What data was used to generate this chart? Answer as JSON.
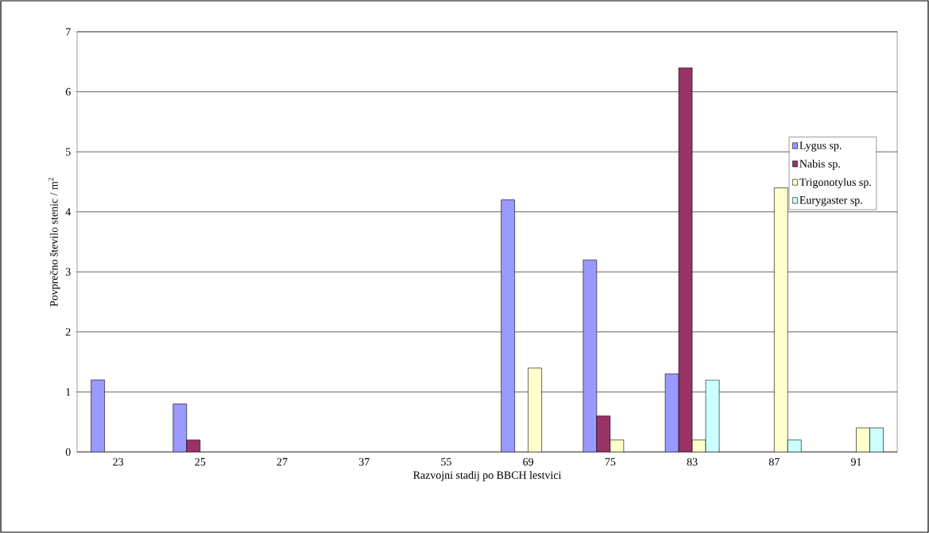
{
  "chart_data": {
    "type": "bar",
    "xlabel": "Razvojni stadij po BBCH lestvici",
    "ylabel": "Povprečno število stenic / m$^{2}$",
    "categories": [
      "23",
      "25",
      "27",
      "37",
      "55",
      "69",
      "75",
      "83",
      "87",
      "91"
    ],
    "series": [
      {
        "name": "Lygus sp.",
        "color": "#9999ff",
        "values": [
          1.2,
          0.8,
          0,
          0,
          0,
          4.2,
          3.2,
          1.3,
          0,
          0
        ]
      },
      {
        "name": "Nabis sp.",
        "color": "#993366",
        "values": [
          0,
          0.2,
          0,
          0,
          0,
          0,
          0.6,
          6.4,
          0,
          0
        ]
      },
      {
        "name": "Trigonotylus sp.",
        "color": "#ffffcc",
        "values": [
          0,
          0,
          0,
          0,
          0,
          1.4,
          0.2,
          0.2,
          4.4,
          0.4
        ]
      },
      {
        "name": "Eurygaster sp.",
        "color": "#ccffff",
        "values": [
          0,
          0,
          0,
          0,
          0,
          0,
          0,
          1.2,
          0.2,
          0.4
        ]
      }
    ],
    "ylim": [
      0,
      7
    ],
    "yticks": [
      0,
      1,
      2,
      3,
      4,
      5,
      6,
      7
    ],
    "grid": "y",
    "legend": "right"
  }
}
